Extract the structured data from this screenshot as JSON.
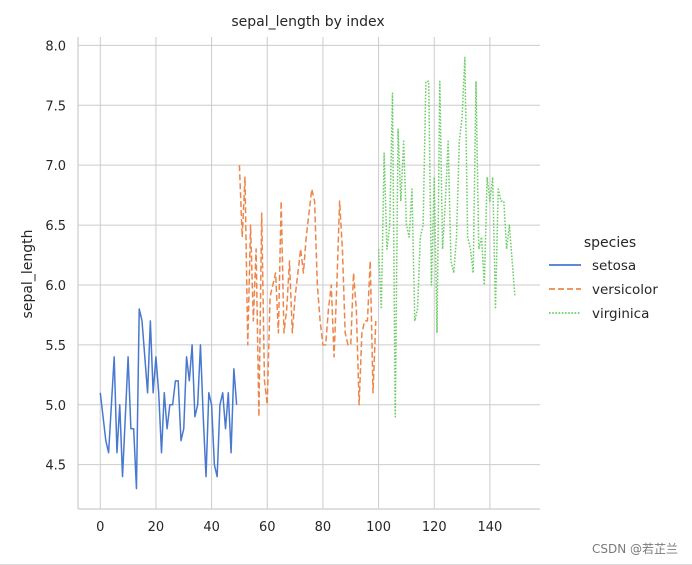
{
  "chart_data": {
    "type": "line",
    "title": "sepal_length by index",
    "xlabel": "",
    "ylabel": "sepal_length",
    "xlim": [
      -8,
      158
    ],
    "ylim": [
      4.13,
      8.07
    ],
    "xticks": [
      0,
      20,
      40,
      60,
      80,
      100,
      120,
      140
    ],
    "yticks": [
      4.5,
      5.0,
      5.5,
      6.0,
      6.5,
      7.0,
      7.5,
      8.0
    ],
    "grid": true,
    "legend": {
      "title": "species",
      "placement": "right"
    },
    "series": [
      {
        "name": "setosa",
        "color": "#4878d0",
        "dash": "solid",
        "x_start": 0,
        "values": [
          5.1,
          4.9,
          4.7,
          4.6,
          5.0,
          5.4,
          4.6,
          5.0,
          4.4,
          4.9,
          5.4,
          4.8,
          4.8,
          4.3,
          5.8,
          5.7,
          5.4,
          5.1,
          5.7,
          5.1,
          5.4,
          5.1,
          4.6,
          5.1,
          4.8,
          5.0,
          5.0,
          5.2,
          5.2,
          4.7,
          4.8,
          5.4,
          5.2,
          5.5,
          4.9,
          5.0,
          5.5,
          4.9,
          4.4,
          5.1,
          5.0,
          4.5,
          4.4,
          5.0,
          5.1,
          4.8,
          5.1,
          4.6,
          5.3,
          5.0
        ]
      },
      {
        "name": "versicolor",
        "color": "#ee854a",
        "dash": "dashed",
        "x_start": 50,
        "values": [
          7.0,
          6.4,
          6.9,
          5.5,
          6.5,
          5.7,
          6.3,
          4.9,
          6.6,
          5.2,
          5.0,
          5.9,
          6.0,
          6.1,
          5.6,
          6.7,
          5.6,
          5.8,
          6.2,
          5.6,
          5.9,
          6.1,
          6.3,
          6.1,
          6.4,
          6.6,
          6.8,
          6.7,
          6.0,
          5.7,
          5.5,
          5.5,
          5.8,
          6.0,
          5.4,
          6.0,
          6.7,
          6.3,
          5.6,
          5.5,
          5.5,
          6.1,
          5.8,
          5.0,
          5.6,
          5.7,
          5.7,
          6.2,
          5.1,
          5.7
        ]
      },
      {
        "name": "virginica",
        "color": "#6acc64",
        "dash": "dotted",
        "x_start": 100,
        "values": [
          6.3,
          5.8,
          7.1,
          6.3,
          6.5,
          7.6,
          4.9,
          7.3,
          6.7,
          7.2,
          6.5,
          6.4,
          6.8,
          5.7,
          5.8,
          6.4,
          6.5,
          7.7,
          7.7,
          6.0,
          6.9,
          5.6,
          7.7,
          6.3,
          6.7,
          7.2,
          6.2,
          6.1,
          6.4,
          7.2,
          7.4,
          7.9,
          6.4,
          6.3,
          6.1,
          7.7,
          6.3,
          6.4,
          6.0,
          6.9,
          6.7,
          6.9,
          5.8,
          6.8,
          6.7,
          6.7,
          6.3,
          6.5,
          6.2,
          5.9
        ]
      }
    ]
  },
  "watermark": "CSDN @若芷兰"
}
